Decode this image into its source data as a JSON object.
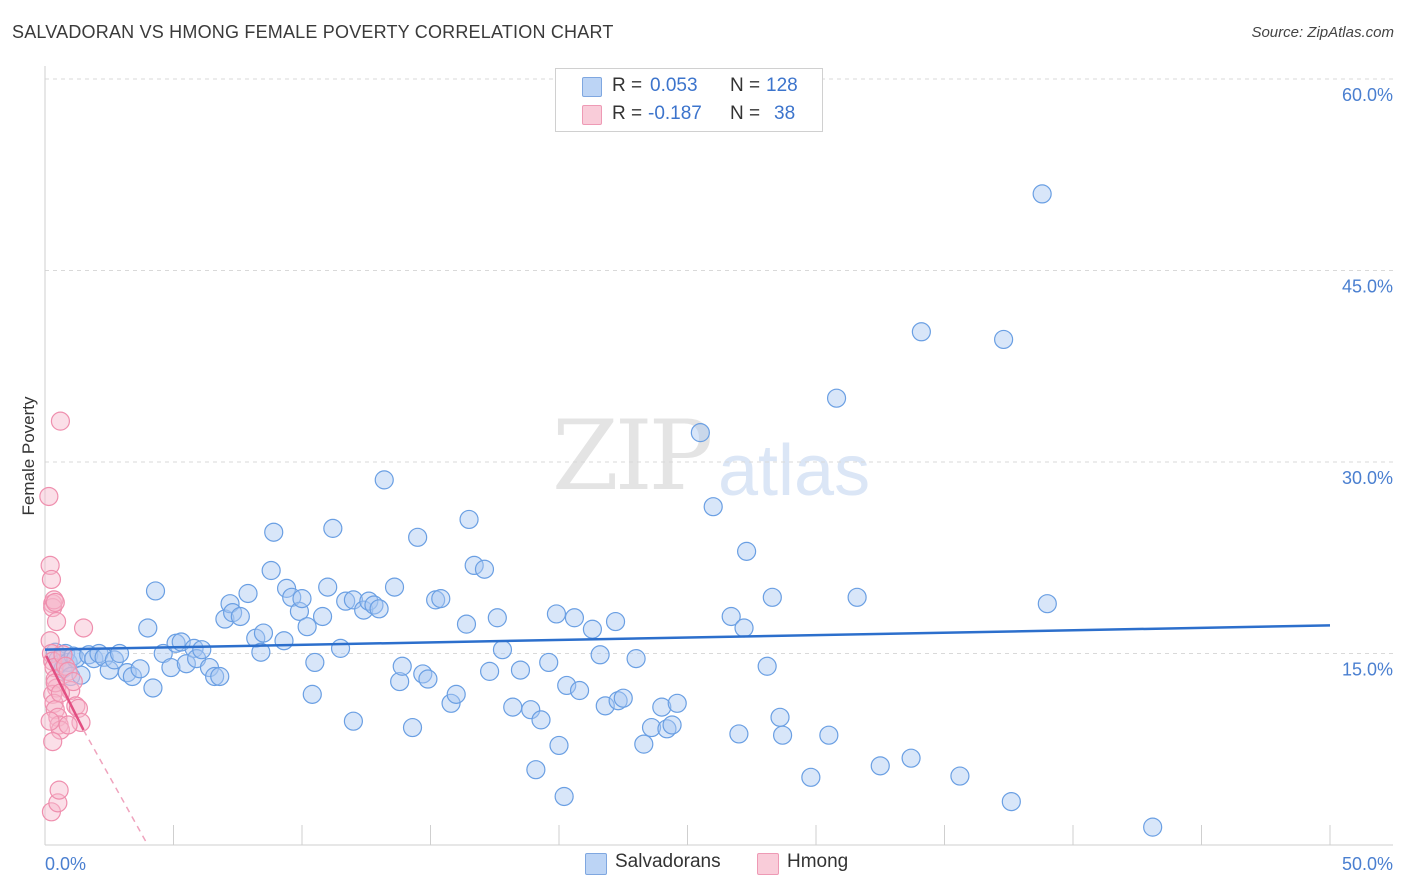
{
  "title": "SALVADORAN VS HMONG FEMALE POVERTY CORRELATION CHART",
  "source": "Source: ZipAtlas.com",
  "watermark": {
    "zip": "ZIP",
    "atlas": "atlas"
  },
  "legend": {
    "rows": [
      {
        "r_label": "R =",
        "r_value": "0.053",
        "n_label": "N =",
        "n_value": "128",
        "color": "#a9c8f2"
      },
      {
        "r_label": "R =",
        "r_value": "-0.187",
        "n_label": "N =",
        "n_value": "38",
        "color": "#f6b9cb"
      }
    ]
  },
  "bottom_legend": [
    {
      "label": "Salvadorans",
      "color": "#a9c8f2"
    },
    {
      "label": "Hmong",
      "color": "#f6b9cb"
    }
  ],
  "chart_data": {
    "type": "scatter",
    "title": "SALVADORAN VS HMONG FEMALE POVERTY CORRELATION CHART",
    "ylabel": "Female Poverty",
    "xlabel": "",
    "xlim": [
      0,
      50
    ],
    "ylim": [
      0,
      60
    ],
    "x_tick_labels": [
      "0.0%",
      "50.0%"
    ],
    "y_tick_labels": [
      {
        "value": 60,
        "label": "60.0%"
      },
      {
        "value": 45,
        "label": "45.0%"
      },
      {
        "value": 30,
        "label": "30.0%"
      },
      {
        "value": 15,
        "label": "15.0%"
      }
    ],
    "grid": "horizontal dashed",
    "series": [
      {
        "name": "Salvadorans",
        "color": "#6a9fe3",
        "fill": "#a9c8f2",
        "trend": {
          "x": [
            0,
            50
          ],
          "y": [
            15.3,
            17.2
          ],
          "color": "#2c6fcc"
        },
        "points": [
          [
            0.4,
            15.1
          ],
          [
            0.5,
            14.5
          ],
          [
            0.6,
            14.2
          ],
          [
            0.7,
            13.8
          ],
          [
            0.8,
            15.0
          ],
          [
            0.9,
            14.3
          ],
          [
            1.0,
            13.2
          ],
          [
            1.1,
            14.8
          ],
          [
            1.2,
            14.6
          ],
          [
            1.4,
            13.3
          ],
          [
            1.7,
            14.9
          ],
          [
            1.9,
            14.6
          ],
          [
            2.1,
            15.0
          ],
          [
            2.3,
            14.7
          ],
          [
            2.5,
            13.7
          ],
          [
            2.7,
            14.5
          ],
          [
            2.9,
            15.0
          ],
          [
            3.2,
            13.5
          ],
          [
            3.4,
            13.2
          ],
          [
            3.7,
            13.8
          ],
          [
            4.0,
            17.0
          ],
          [
            4.2,
            12.3
          ],
          [
            4.3,
            19.9
          ],
          [
            4.6,
            15.0
          ],
          [
            4.9,
            13.9
          ],
          [
            5.1,
            15.8
          ],
          [
            5.3,
            15.9
          ],
          [
            5.5,
            14.2
          ],
          [
            5.8,
            15.4
          ],
          [
            5.9,
            14.6
          ],
          [
            6.1,
            15.3
          ],
          [
            6.4,
            13.9
          ],
          [
            6.6,
            13.2
          ],
          [
            6.8,
            13.2
          ],
          [
            7.0,
            17.7
          ],
          [
            7.2,
            18.9
          ],
          [
            7.3,
            18.2
          ],
          [
            7.6,
            17.9
          ],
          [
            7.9,
            19.7
          ],
          [
            8.2,
            16.2
          ],
          [
            8.4,
            15.1
          ],
          [
            8.5,
            16.6
          ],
          [
            8.8,
            21.5
          ],
          [
            8.9,
            24.5
          ],
          [
            9.3,
            16.0
          ],
          [
            9.4,
            20.1
          ],
          [
            9.6,
            19.4
          ],
          [
            9.9,
            18.3
          ],
          [
            10.0,
            19.3
          ],
          [
            10.2,
            17.1
          ],
          [
            10.4,
            11.8
          ],
          [
            10.5,
            14.3
          ],
          [
            10.8,
            17.9
          ],
          [
            11.0,
            20.2
          ],
          [
            11.2,
            24.8
          ],
          [
            11.5,
            15.4
          ],
          [
            11.7,
            19.1
          ],
          [
            12.0,
            19.2
          ],
          [
            12.0,
            9.7
          ],
          [
            12.4,
            18.4
          ],
          [
            12.6,
            19.1
          ],
          [
            12.8,
            18.8
          ],
          [
            13.0,
            18.5
          ],
          [
            13.2,
            28.6
          ],
          [
            13.6,
            20.2
          ],
          [
            13.8,
            12.8
          ],
          [
            13.9,
            14.0
          ],
          [
            14.3,
            9.2
          ],
          [
            14.5,
            24.1
          ],
          [
            14.7,
            13.4
          ],
          [
            14.9,
            13.0
          ],
          [
            15.2,
            19.2
          ],
          [
            15.4,
            19.3
          ],
          [
            15.8,
            11.1
          ],
          [
            16.0,
            11.8
          ],
          [
            16.4,
            17.3
          ],
          [
            16.5,
            25.5
          ],
          [
            16.7,
            21.9
          ],
          [
            17.1,
            21.6
          ],
          [
            17.3,
            13.6
          ],
          [
            17.6,
            17.8
          ],
          [
            17.8,
            15.3
          ],
          [
            18.2,
            10.8
          ],
          [
            18.5,
            13.7
          ],
          [
            18.9,
            10.6
          ],
          [
            19.3,
            9.8
          ],
          [
            19.6,
            14.3
          ],
          [
            19.9,
            18.1
          ],
          [
            20.0,
            7.8
          ],
          [
            20.3,
            12.5
          ],
          [
            20.6,
            17.8
          ],
          [
            20.8,
            12.1
          ],
          [
            21.3,
            16.9
          ],
          [
            21.6,
            14.9
          ],
          [
            21.8,
            10.9
          ],
          [
            22.2,
            17.5
          ],
          [
            22.3,
            11.3
          ],
          [
            22.5,
            11.5
          ],
          [
            23.0,
            14.6
          ],
          [
            23.3,
            7.9
          ],
          [
            23.6,
            9.2
          ],
          [
            24.0,
            10.8
          ],
          [
            24.2,
            9.1
          ],
          [
            24.4,
            9.4
          ],
          [
            24.6,
            11.1
          ],
          [
            19.1,
            5.9
          ],
          [
            20.2,
            3.8
          ],
          [
            25.5,
            32.3
          ],
          [
            26.0,
            26.5
          ],
          [
            26.7,
            17.9
          ],
          [
            27.0,
            8.7
          ],
          [
            27.2,
            17.0
          ],
          [
            27.3,
            23.0
          ],
          [
            28.1,
            14.0
          ],
          [
            28.3,
            19.4
          ],
          [
            28.6,
            10.0
          ],
          [
            28.7,
            8.6
          ],
          [
            29.8,
            5.3
          ],
          [
            30.5,
            8.6
          ],
          [
            30.8,
            35.0
          ],
          [
            31.6,
            19.4
          ],
          [
            32.5,
            6.2
          ],
          [
            33.7,
            6.8
          ],
          [
            34.1,
            40.2
          ],
          [
            35.6,
            5.4
          ],
          [
            37.3,
            39.6
          ],
          [
            37.6,
            3.4
          ],
          [
            38.8,
            51.0
          ],
          [
            39.0,
            18.9
          ],
          [
            43.1,
            1.4
          ]
        ]
      },
      {
        "name": "Hmong",
        "color": "#ef8fae",
        "fill": "#f6b9cb",
        "trend": {
          "x": [
            0.05,
            1.5
          ],
          "y": [
            14.8,
            9.0
          ],
          "dashed_extension": {
            "x": [
              1.5,
              4.0
            ],
            "y": [
              9.0,
              0.0
            ]
          },
          "color": "#e24f82"
        },
        "points": [
          [
            0.15,
            27.3
          ],
          [
            0.2,
            21.9
          ],
          [
            0.25,
            20.8
          ],
          [
            0.3,
            18.9
          ],
          [
            0.3,
            18.6
          ],
          [
            0.35,
            19.2
          ],
          [
            0.4,
            19.0
          ],
          [
            0.45,
            17.5
          ],
          [
            0.2,
            16.0
          ],
          [
            0.25,
            15.0
          ],
          [
            0.3,
            14.4
          ],
          [
            0.35,
            13.9
          ],
          [
            0.4,
            13.0
          ],
          [
            0.45,
            12.3
          ],
          [
            0.3,
            11.8
          ],
          [
            0.35,
            11.1
          ],
          [
            0.4,
            10.6
          ],
          [
            0.5,
            10.0
          ],
          [
            0.55,
            9.4
          ],
          [
            0.6,
            9.0
          ],
          [
            0.3,
            8.1
          ],
          [
            0.25,
            2.6
          ],
          [
            0.5,
            3.3
          ],
          [
            0.55,
            4.3
          ],
          [
            0.6,
            33.2
          ],
          [
            0.7,
            14.9
          ],
          [
            0.8,
            14.0
          ],
          [
            0.9,
            13.6
          ],
          [
            1.0,
            12.1
          ],
          [
            1.1,
            12.8
          ],
          [
            1.2,
            10.9
          ],
          [
            1.3,
            10.7
          ],
          [
            1.4,
            9.6
          ],
          [
            1.5,
            17.0
          ],
          [
            0.9,
            9.4
          ],
          [
            0.2,
            9.7
          ],
          [
            0.4,
            12.7
          ],
          [
            0.6,
            11.9
          ]
        ]
      }
    ]
  }
}
